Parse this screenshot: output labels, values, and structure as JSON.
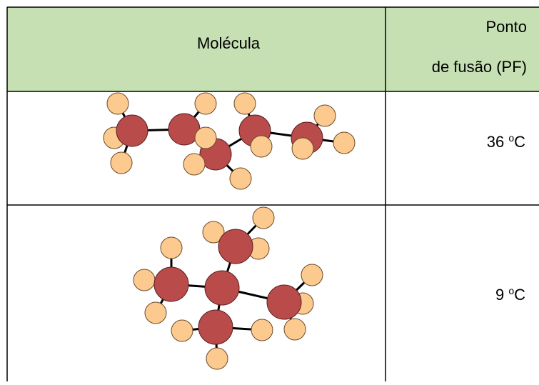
{
  "table": {
    "header": {
      "molecule": "Molécula",
      "melting_point": [
        "Ponto",
        "de fusão (PF)"
      ]
    },
    "rows": [
      {
        "temp": "36",
        "unit_sup": "o",
        "unit": "C"
      },
      {
        "temp": "9",
        "unit_sup": "o",
        "unit": "C"
      }
    ]
  }
}
